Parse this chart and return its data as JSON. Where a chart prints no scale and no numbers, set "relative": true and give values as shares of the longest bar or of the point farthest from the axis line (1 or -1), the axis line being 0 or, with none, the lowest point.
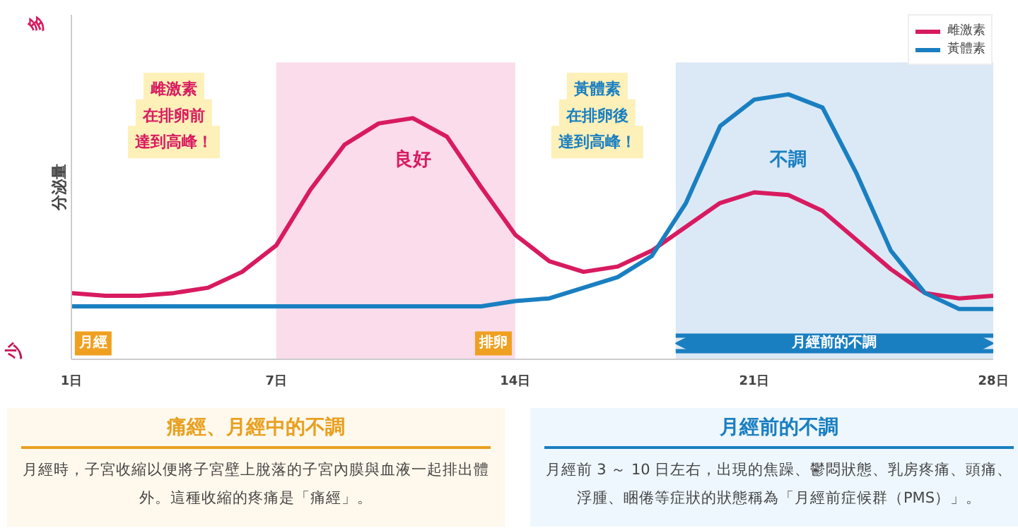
{
  "chart_data": {
    "type": "line",
    "relative": true,
    "ylabel": "分泌量",
    "x": [
      1,
      2,
      3,
      4,
      5,
      6,
      7,
      8,
      9,
      10,
      11,
      12,
      13,
      14,
      15,
      16,
      17,
      18,
      19,
      20,
      21,
      22,
      23,
      24,
      25,
      26,
      27,
      28
    ],
    "xlim": [
      1,
      28
    ],
    "xticks": [
      {
        "value": 1,
        "label": "1日"
      },
      {
        "value": 7,
        "label": "7日"
      },
      {
        "value": 14,
        "label": "14日"
      },
      {
        "value": 21,
        "label": "21日"
      },
      {
        "value": 28,
        "label": "28日"
      }
    ],
    "series": [
      {
        "name": "雌激素",
        "color": "#d81b60",
        "values": [
          0.25,
          0.24,
          0.24,
          0.25,
          0.27,
          0.33,
          0.43,
          0.64,
          0.81,
          0.89,
          0.91,
          0.84,
          0.65,
          0.47,
          0.37,
          0.33,
          0.35,
          0.41,
          0.5,
          0.59,
          0.63,
          0.62,
          0.56,
          0.45,
          0.34,
          0.25,
          0.23,
          0.24
        ]
      },
      {
        "name": "黃體素",
        "color": "#1a7fc1",
        "values": [
          0.2,
          0.2,
          0.2,
          0.2,
          0.2,
          0.2,
          0.2,
          0.2,
          0.2,
          0.2,
          0.2,
          0.2,
          0.2,
          0.22,
          0.23,
          0.27,
          0.31,
          0.39,
          0.59,
          0.88,
          0.98,
          1.0,
          0.95,
          0.7,
          0.41,
          0.25,
          0.19,
          0.19
        ]
      }
    ],
    "bands": [
      {
        "axis": "x",
        "from": 7,
        "to": 14,
        "color": "#fadcea"
      },
      {
        "axis": "x",
        "from": 18.7,
        "to": 28,
        "color": "#dbe9f6",
        "label": "月經前的不調"
      }
    ],
    "annotations": [
      "良好",
      "不調",
      "月經",
      "排卵",
      "雌激素",
      "在排卵前",
      "達到高峰！",
      "黃體素",
      "在排卵後",
      "達到高峰！",
      "多",
      "少",
      "痛經、月經中的不調",
      "月經時，子宮收縮以便將子宮壁上脫落的子宮內膜與血液一起排出體外。這種收縮的疼痛是「痛經」。",
      "月經前的不調",
      "月經前 3 ～ 10 日左右，出現的焦躁、鬱悶狀態、乳房疼痛、頭痛、浮腫、睏倦等症狀的狀態稱為「月經前症候群（PMS）」。"
    ],
    "legend": "top right",
    "grid": false,
    "marker": "none",
    "line_style": "solid"
  }
}
